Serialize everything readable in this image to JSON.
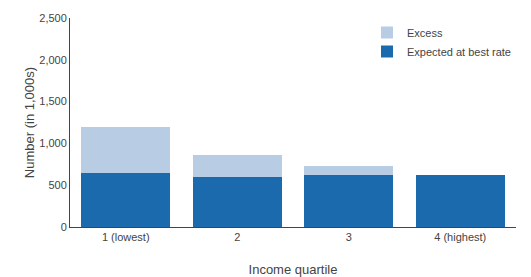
{
  "chart_data": {
    "type": "bar",
    "stacked": true,
    "categories": [
      "1 (lowest)",
      "2",
      "3",
      "4 (highest)"
    ],
    "series": [
      {
        "name": "Expected at best rate",
        "color": "#1a6aad",
        "values": [
          650,
          600,
          620,
          625
        ]
      },
      {
        "name": "Excess",
        "color": "#b8cce4",
        "values": [
          550,
          260,
          110,
          0
        ]
      }
    ],
    "xlabel": "Income quartile",
    "ylabel": "Number (in 1,000s)",
    "ylim": [
      0,
      2500
    ],
    "yticks": [
      0,
      500,
      {
        "value": 1000,
        "label": "1,000"
      },
      {
        "value": 1500,
        "label": "1,500"
      },
      {
        "value": 2000,
        "label": "2,000"
      },
      {
        "value": 2500,
        "label": "2,500"
      }
    ],
    "legend": "upper right",
    "grid": false
  }
}
